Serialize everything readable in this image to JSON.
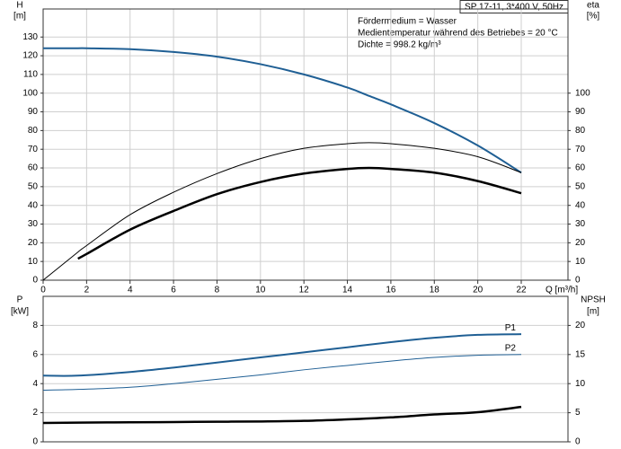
{
  "chart_data": [
    {
      "type": "line",
      "title": "SP 17-11, 3*400 V, 50Hz",
      "annotations": [
        "Fördermedium = Wasser",
        "Medientemperatur während des Betriebes = 20 °C",
        "Dichte = 998.2 kg/m³"
      ],
      "ylabel": "H",
      "yunit": "[m]",
      "y2label": "eta",
      "y2unit": "[%]",
      "xlabel": "Q [m³/h]",
      "x": [
        0,
        1.6,
        2,
        4,
        6,
        8,
        10,
        12,
        14,
        15,
        16,
        18,
        20,
        22
      ],
      "xlim": [
        0,
        24.15
      ],
      "xticks": [
        0,
        2,
        4,
        6,
        8,
        10,
        12,
        14,
        16,
        18,
        20,
        22
      ],
      "ylim": [
        0,
        145
      ],
      "yticks": [
        0,
        10,
        20,
        30,
        40,
        50,
        60,
        70,
        80,
        90,
        100,
        110,
        120,
        130
      ],
      "y2lim": [
        0,
        145
      ],
      "y2ticks": [
        0,
        10,
        20,
        30,
        40,
        50,
        60,
        70,
        80,
        90,
        100
      ],
      "grid": true,
      "series": [
        {
          "color": "#1f5f94",
          "line_width": 2,
          "values": [
            124,
            124,
            124,
            123.5,
            122,
            119.5,
            115.5,
            110,
            103,
            98.5,
            94,
            84,
            72,
            57.5
          ]
        },
        {
          "color": "#000000",
          "line_width": 1,
          "axis": "y2",
          "values": [
            0,
            15,
            18.5,
            35,
            47,
            57,
            65,
            70.5,
            73,
            73.5,
            73,
            70.5,
            66,
            57.5
          ]
        },
        {
          "color": "#000000",
          "line_width": 2.5,
          "axis": "y2",
          "values": [
            null,
            11.5,
            14,
            27,
            37,
            46,
            52.5,
            57,
            59.5,
            60,
            59.5,
            57.5,
            53,
            46.5
          ]
        }
      ]
    },
    {
      "type": "line",
      "ylabel": "P",
      "yunit": "[kW]",
      "y2label": "NPSH",
      "y2unit": "[m]",
      "x": [
        0,
        1.6,
        4,
        6,
        8,
        10,
        12,
        14,
        16,
        18,
        20,
        22
      ],
      "xlim": [
        0,
        24.15
      ],
      "ylim": [
        0,
        10
      ],
      "yticks": [
        0,
        2,
        4,
        6,
        8
      ],
      "y2lim": [
        0,
        25
      ],
      "y2ticks": [
        0,
        5,
        10,
        15,
        20
      ],
      "grid": true,
      "series": [
        {
          "name": "P1",
          "color": "#1f5f94",
          "line_width": 2,
          "values": [
            4.55,
            4.55,
            4.8,
            5.1,
            5.45,
            5.8,
            6.15,
            6.5,
            6.85,
            7.15,
            7.35,
            7.4
          ]
        },
        {
          "name": "P2",
          "color": "#1f5f94",
          "line_width": 1,
          "values": [
            3.55,
            3.6,
            3.75,
            4.0,
            4.3,
            4.6,
            4.95,
            5.25,
            5.55,
            5.8,
            5.95,
            6.0
          ]
        },
        {
          "color": "#000000",
          "line_width": 2.5,
          "axis": "y2",
          "values": [
            3.25,
            3.3,
            3.35,
            3.4,
            3.45,
            3.5,
            3.6,
            3.85,
            4.2,
            4.7,
            5.1,
            6.0
          ]
        }
      ]
    }
  ]
}
